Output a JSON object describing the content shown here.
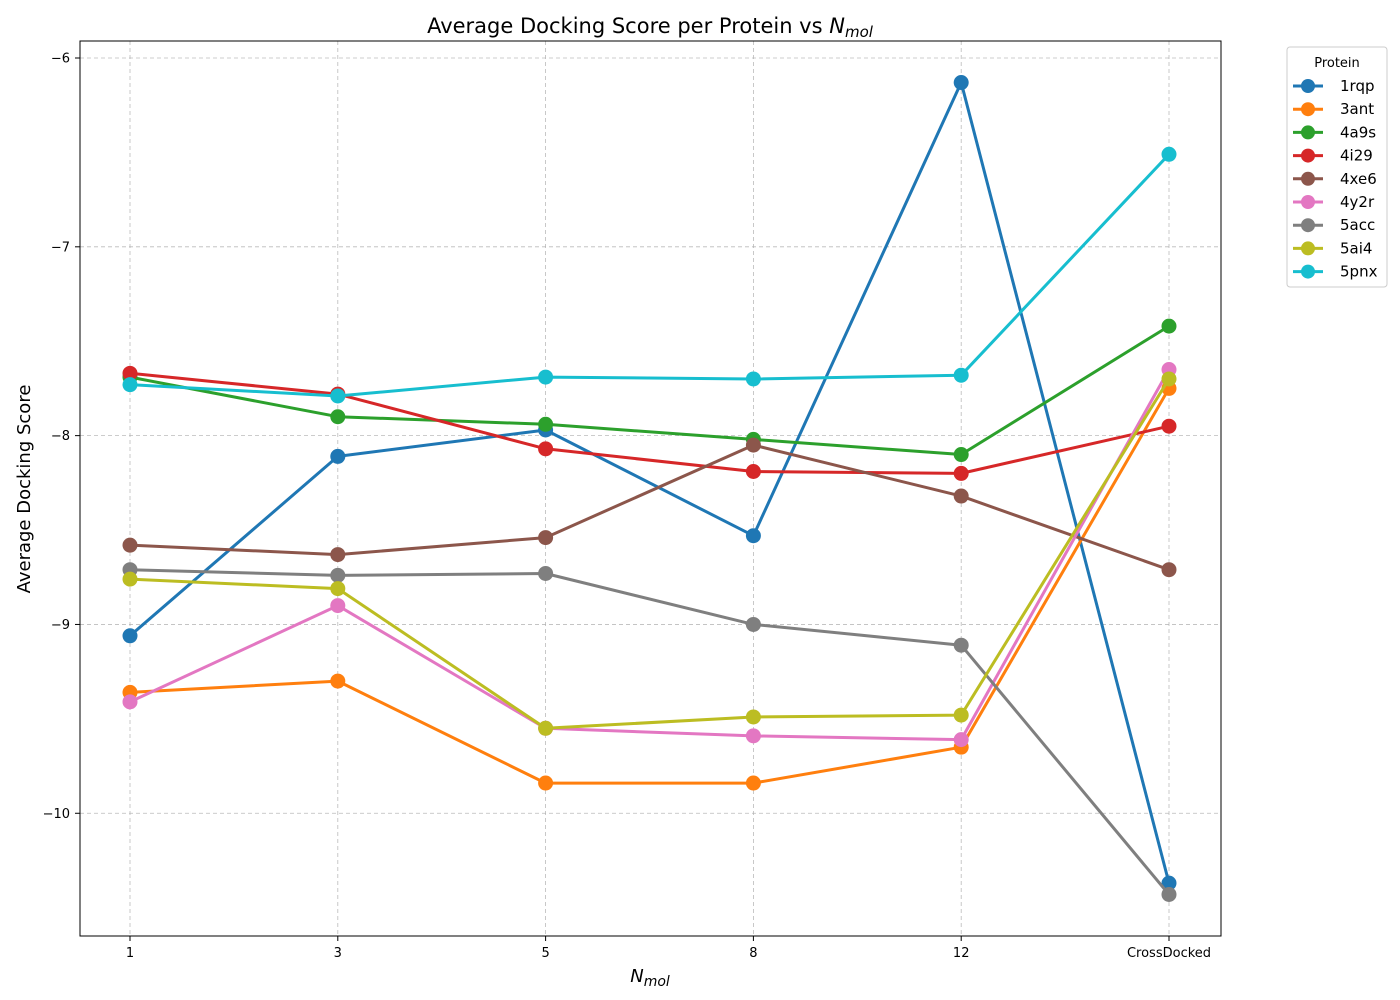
{
  "chart_data": {
    "type": "line",
    "title_main": "Average Docking Score per Protein vs ",
    "title_var": "N",
    "title_sub": "mol",
    "xlabel_var": "N",
    "xlabel_sub": "mol",
    "ylabel": "Average Docking Score",
    "categories": [
      "1",
      "3",
      "5",
      "8",
      "12",
      "CrossDocked"
    ],
    "ylim": [
      -10.65,
      -5.91
    ],
    "yticks": [
      -10,
      -9,
      -8,
      -7,
      -6
    ],
    "ytick_labels": [
      "−10",
      "−9",
      "−8",
      "−7",
      "−6"
    ],
    "grid": true,
    "legend_title": "Protein",
    "legend_position": "outside-right-top",
    "series": [
      {
        "name": "1rqp",
        "color": "#1f77b4",
        "values": [
          -9.06,
          -8.11,
          -7.97,
          -8.53,
          -6.13,
          -10.37
        ]
      },
      {
        "name": "3ant",
        "color": "#ff7f0e",
        "values": [
          -9.36,
          -9.3,
          -9.84,
          -9.84,
          -9.65,
          -7.75
        ]
      },
      {
        "name": "4a9s",
        "color": "#2ca02c",
        "values": [
          -7.69,
          -7.9,
          -7.94,
          -8.02,
          -8.1,
          -7.42
        ]
      },
      {
        "name": "4i29",
        "color": "#d62728",
        "values": [
          -7.67,
          -7.78,
          -8.07,
          -8.19,
          -8.2,
          -7.95
        ]
      },
      {
        "name": "4xe6",
        "color": "#8c564b",
        "values": [
          -8.58,
          -8.63,
          -8.54,
          -8.05,
          -8.32,
          -8.71
        ]
      },
      {
        "name": "4y2r",
        "color": "#e377c2",
        "values": [
          -9.41,
          -8.9,
          -9.55,
          -9.59,
          -9.61,
          -7.65
        ]
      },
      {
        "name": "5acc",
        "color": "#7f7f7f",
        "values": [
          -8.71,
          -8.74,
          -8.73,
          -9.0,
          -9.11,
          -10.43
        ]
      },
      {
        "name": "5ai4",
        "color": "#bcbd22",
        "values": [
          -8.76,
          -8.81,
          -9.55,
          -9.49,
          -9.48,
          -7.7
        ]
      },
      {
        "name": "5pnx",
        "color": "#17becf",
        "values": [
          -7.73,
          -7.79,
          -7.69,
          -7.7,
          -7.68,
          -6.51
        ]
      }
    ]
  }
}
